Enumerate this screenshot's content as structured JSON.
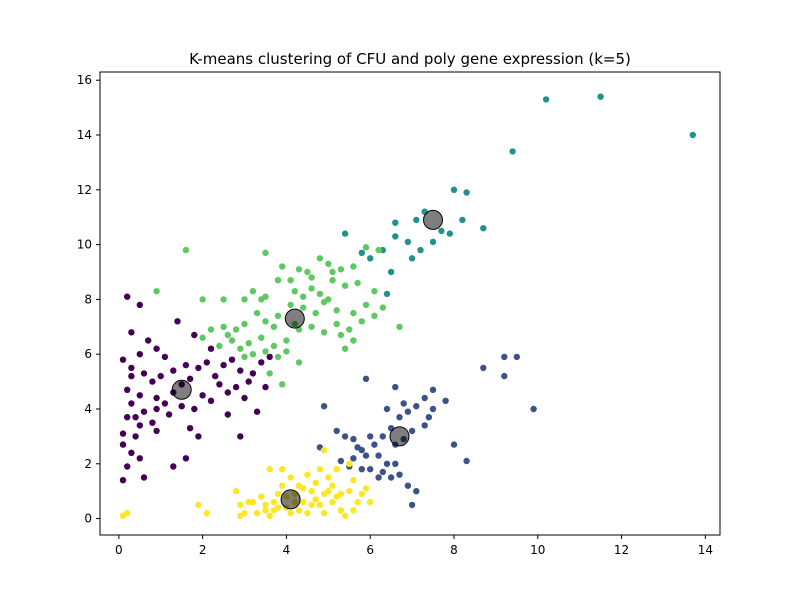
{
  "chart_data": {
    "type": "scatter",
    "title": "K-means clustering of CFU and poly gene expression (k=5)",
    "xlabel": "",
    "ylabel": "",
    "xlim": [
      -0.45,
      14.35
    ],
    "ylim": [
      -0.6,
      16.3
    ],
    "x_ticks": [
      0,
      2,
      4,
      6,
      8,
      10,
      12,
      14
    ],
    "y_ticks": [
      0,
      2,
      4,
      6,
      8,
      10,
      12,
      14,
      16
    ],
    "grid": false,
    "legend": "none",
    "clusters": [
      {
        "color": "#440154",
        "points": [
          [
            0.2,
            8.1
          ],
          [
            0.5,
            7.8
          ],
          [
            0.7,
            6.5
          ],
          [
            0.3,
            6.8
          ],
          [
            0.5,
            6.0
          ],
          [
            0.9,
            6.2
          ],
          [
            0.1,
            5.8
          ],
          [
            0.3,
            5.5
          ],
          [
            0.6,
            5.3
          ],
          [
            0.8,
            5.0
          ],
          [
            1.0,
            5.2
          ],
          [
            0.2,
            4.7
          ],
          [
            0.5,
            4.5
          ],
          [
            0.9,
            4.4
          ],
          [
            1.1,
            4.2
          ],
          [
            0.3,
            4.2
          ],
          [
            0.6,
            3.9
          ],
          [
            0.9,
            4.0
          ],
          [
            0.2,
            3.7
          ],
          [
            0.5,
            3.4
          ],
          [
            0.8,
            3.5
          ],
          [
            0.1,
            3.1
          ],
          [
            0.4,
            3.0
          ],
          [
            0.9,
            3.2
          ],
          [
            0.1,
            2.7
          ],
          [
            0.3,
            2.4
          ],
          [
            0.5,
            2.2
          ],
          [
            0.2,
            1.9
          ],
          [
            0.6,
            1.5
          ],
          [
            0.1,
            1.4
          ],
          [
            1.3,
            1.9
          ],
          [
            1.6,
            2.2
          ],
          [
            1.9,
            3.0
          ],
          [
            1.7,
            3.3
          ],
          [
            1.2,
            3.8
          ],
          [
            1.5,
            4.1
          ],
          [
            1.8,
            4.0
          ],
          [
            1.3,
            4.6
          ],
          [
            1.5,
            4.9
          ],
          [
            1.7,
            5.1
          ],
          [
            1.3,
            5.4
          ],
          [
            1.6,
            5.6
          ],
          [
            1.9,
            5.5
          ],
          [
            2.1,
            5.7
          ],
          [
            2.3,
            5.2
          ],
          [
            2.5,
            5.6
          ],
          [
            2.7,
            5.8
          ],
          [
            2.9,
            5.4
          ],
          [
            3.1,
            5.0
          ],
          [
            3.2,
            5.3
          ],
          [
            2.4,
            4.9
          ],
          [
            2.6,
            4.6
          ],
          [
            2.8,
            4.8
          ],
          [
            3.0,
            4.4
          ],
          [
            2.2,
            4.3
          ],
          [
            2.0,
            4.5
          ],
          [
            2.6,
            3.8
          ],
          [
            2.9,
            3.0
          ],
          [
            3.3,
            3.9
          ],
          [
            3.5,
            4.8
          ],
          [
            3.6,
            5.9
          ],
          [
            3.4,
            5.7
          ],
          [
            2.2,
            6.2
          ],
          [
            1.8,
            6.7
          ],
          [
            1.4,
            7.2
          ],
          [
            1.1,
            5.9
          ],
          [
            0.3,
            5.2
          ],
          [
            0.4,
            3.7
          ]
        ]
      },
      {
        "color": "#3b528b",
        "points": [
          [
            4.9,
            4.1
          ],
          [
            5.2,
            3.2
          ],
          [
            5.4,
            3.0
          ],
          [
            5.6,
            2.9
          ],
          [
            5.8,
            2.5
          ],
          [
            5.6,
            2.2
          ],
          [
            5.3,
            2.1
          ],
          [
            5.5,
            1.9
          ],
          [
            5.8,
            1.8
          ],
          [
            6.0,
            1.8
          ],
          [
            6.2,
            1.5
          ],
          [
            6.3,
            1.7
          ],
          [
            6.5,
            1.5
          ],
          [
            6.7,
            1.6
          ],
          [
            6.9,
            1.2
          ],
          [
            7.1,
            1.0
          ],
          [
            7.0,
            0.5
          ],
          [
            6.6,
            2.7
          ],
          [
            6.8,
            2.9
          ],
          [
            7.0,
            3.2
          ],
          [
            7.3,
            3.4
          ],
          [
            7.4,
            3.7
          ],
          [
            7.5,
            4.0
          ],
          [
            7.3,
            4.4
          ],
          [
            7.1,
            4.1
          ],
          [
            6.9,
            3.9
          ],
          [
            6.7,
            3.7
          ],
          [
            6.5,
            3.3
          ],
          [
            6.3,
            3.0
          ],
          [
            6.1,
            2.7
          ],
          [
            5.9,
            2.3
          ],
          [
            5.7,
            2.6
          ],
          [
            6.0,
            3.0
          ],
          [
            6.2,
            2.3
          ],
          [
            6.4,
            2.0
          ],
          [
            6.6,
            2.0
          ],
          [
            5.9,
            5.1
          ],
          [
            6.6,
            4.8
          ],
          [
            7.5,
            4.7
          ],
          [
            7.8,
            4.3
          ],
          [
            8.0,
            2.7
          ],
          [
            8.3,
            2.1
          ],
          [
            8.7,
            5.5
          ],
          [
            9.2,
            5.9
          ],
          [
            9.2,
            5.2
          ],
          [
            9.5,
            5.9
          ],
          [
            9.9,
            4.0
          ],
          [
            6.4,
            4.0
          ],
          [
            6.8,
            4.2
          ],
          [
            4.8,
            2.6
          ]
        ]
      },
      {
        "color": "#21918c",
        "points": [
          [
            10.2,
            15.3
          ],
          [
            11.5,
            15.4
          ],
          [
            13.7,
            14.0
          ],
          [
            9.4,
            13.4
          ],
          [
            8.0,
            12.0
          ],
          [
            8.3,
            11.9
          ],
          [
            8.2,
            10.9
          ],
          [
            8.7,
            10.6
          ],
          [
            7.3,
            11.2
          ],
          [
            7.7,
            10.5
          ],
          [
            7.9,
            10.4
          ],
          [
            7.5,
            10.1
          ],
          [
            7.2,
            9.8
          ],
          [
            6.9,
            10.1
          ],
          [
            6.6,
            10.3
          ],
          [
            6.6,
            10.8
          ],
          [
            6.3,
            9.8
          ],
          [
            6.0,
            9.5
          ],
          [
            6.5,
            9.0
          ],
          [
            6.4,
            8.2
          ],
          [
            5.4,
            10.4
          ],
          [
            5.8,
            9.7
          ],
          [
            7.1,
            10.9
          ],
          [
            7.0,
            9.5
          ]
        ]
      },
      {
        "color": "#5ec962",
        "points": [
          [
            1.6,
            9.8
          ],
          [
            0.9,
            8.3
          ],
          [
            2.0,
            8.0
          ],
          [
            2.5,
            8.0
          ],
          [
            3.0,
            8.0
          ],
          [
            3.2,
            8.3
          ],
          [
            3.5,
            8.1
          ],
          [
            3.8,
            8.7
          ],
          [
            4.1,
            8.7
          ],
          [
            4.3,
            9.1
          ],
          [
            4.5,
            9.0
          ],
          [
            4.8,
            9.5
          ],
          [
            5.0,
            9.3
          ],
          [
            5.3,
            9.1
          ],
          [
            5.6,
            9.2
          ],
          [
            5.9,
            9.9
          ],
          [
            6.2,
            9.8
          ],
          [
            3.5,
            9.7
          ],
          [
            3.9,
            9.2
          ],
          [
            4.2,
            8.3
          ],
          [
            4.6,
            8.4
          ],
          [
            5.1,
            8.7
          ],
          [
            5.4,
            8.5
          ],
          [
            5.7,
            8.6
          ],
          [
            6.1,
            8.3
          ],
          [
            6.3,
            7.7
          ],
          [
            5.9,
            7.8
          ],
          [
            5.6,
            7.5
          ],
          [
            5.2,
            7.6
          ],
          [
            4.9,
            7.9
          ],
          [
            4.7,
            7.5
          ],
          [
            4.4,
            7.7
          ],
          [
            4.1,
            7.8
          ],
          [
            3.8,
            7.4
          ],
          [
            3.5,
            7.2
          ],
          [
            3.3,
            7.5
          ],
          [
            3.0,
            7.1
          ],
          [
            2.8,
            6.9
          ],
          [
            2.5,
            7.0
          ],
          [
            2.2,
            6.9
          ],
          [
            2.0,
            6.6
          ],
          [
            2.4,
            6.3
          ],
          [
            2.7,
            6.5
          ],
          [
            3.1,
            6.4
          ],
          [
            3.4,
            6.6
          ],
          [
            3.7,
            6.3
          ],
          [
            4.0,
            6.5
          ],
          [
            4.3,
            6.9
          ],
          [
            4.6,
            7.0
          ],
          [
            4.9,
            6.8
          ],
          [
            5.2,
            7.1
          ],
          [
            5.5,
            6.9
          ],
          [
            5.8,
            7.2
          ],
          [
            6.1,
            7.4
          ],
          [
            3.2,
            6.0
          ],
          [
            3.5,
            6.1
          ],
          [
            3.8,
            5.9
          ],
          [
            4.0,
            6.1
          ],
          [
            4.3,
            5.7
          ],
          [
            3.9,
            4.9
          ],
          [
            3.6,
            5.3
          ],
          [
            3.0,
            5.9
          ],
          [
            4.4,
            8.1
          ],
          [
            4.8,
            8.2
          ],
          [
            5.0,
            8.0
          ],
          [
            5.3,
            6.7
          ],
          [
            5.6,
            6.5
          ],
          [
            5.4,
            6.2
          ],
          [
            6.7,
            7.0
          ],
          [
            5.1,
            9.0
          ],
          [
            4.6,
            8.8
          ],
          [
            2.9,
            6.2
          ],
          [
            2.6,
            6.7
          ],
          [
            3.4,
            8.0
          ],
          [
            3.7,
            7.0
          ],
          [
            4.2,
            7.1
          ]
        ]
      },
      {
        "color": "#fde725",
        "points": [
          [
            0.1,
            0.1
          ],
          [
            0.2,
            0.2
          ],
          [
            1.9,
            0.5
          ],
          [
            2.1,
            0.2
          ],
          [
            2.8,
            1.0
          ],
          [
            2.9,
            0.5
          ],
          [
            3.0,
            0.2
          ],
          [
            3.2,
            0.6
          ],
          [
            3.4,
            0.8
          ],
          [
            3.5,
            0.3
          ],
          [
            3.6,
            0.1
          ],
          [
            3.7,
            0.6
          ],
          [
            3.8,
            0.9
          ],
          [
            3.9,
            1.2
          ],
          [
            4.0,
            0.4
          ],
          [
            4.1,
            0.2
          ],
          [
            4.2,
            0.9
          ],
          [
            4.3,
            1.2
          ],
          [
            4.4,
            0.6
          ],
          [
            4.5,
            0.2
          ],
          [
            4.6,
            1.0
          ],
          [
            4.7,
            1.3
          ],
          [
            4.8,
            0.5
          ],
          [
            4.9,
            0.9
          ],
          [
            5.0,
            1.5
          ],
          [
            5.1,
            1.2
          ],
          [
            5.2,
            0.8
          ],
          [
            5.3,
            0.3
          ],
          [
            5.4,
            0.1
          ],
          [
            5.5,
            1.0
          ],
          [
            5.6,
            1.4
          ],
          [
            5.7,
            0.6
          ],
          [
            5.8,
            0.9
          ],
          [
            5.9,
            1.1
          ],
          [
            6.0,
            0.6
          ],
          [
            4.5,
            1.6
          ],
          [
            4.8,
            1.8
          ],
          [
            5.2,
            1.8
          ],
          [
            5.5,
            2.0
          ],
          [
            4.9,
            2.5
          ],
          [
            3.6,
            1.8
          ],
          [
            3.9,
            1.8
          ],
          [
            2.9,
            0.1
          ],
          [
            3.3,
            0.2
          ],
          [
            3.5,
            0.5
          ],
          [
            4.0,
            0.8
          ],
          [
            4.3,
            0.3
          ],
          [
            4.6,
            0.5
          ],
          [
            4.9,
            0.2
          ],
          [
            5.1,
            0.6
          ],
          [
            5.3,
            0.9
          ],
          [
            3.8,
            0.4
          ],
          [
            4.1,
            1.5
          ],
          [
            4.4,
            1.1
          ],
          [
            4.7,
            0.7
          ],
          [
            3.1,
            0.6
          ],
          [
            3.7,
            0.3
          ],
          [
            4.2,
            0.6
          ],
          [
            5.6,
            0.3
          ],
          [
            5.0,
            1.0
          ]
        ]
      }
    ],
    "centroids": [
      [
        1.5,
        4.7
      ],
      [
        6.7,
        3.0
      ],
      [
        7.5,
        10.9
      ],
      [
        4.2,
        7.3
      ],
      [
        4.1,
        0.7
      ]
    ]
  }
}
